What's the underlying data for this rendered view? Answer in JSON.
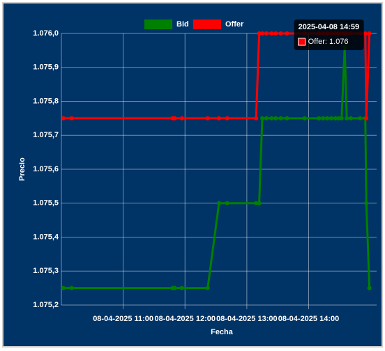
{
  "chart_data": {
    "type": "line",
    "x_label": "Fecha",
    "y_label": "Precio",
    "x": [
      "2025-04-08 10:02",
      "2025-04-08 10:10",
      "2025-04-08 11:48",
      "2025-04-08 11:50",
      "2025-04-08 11:57",
      "2025-04-08 12:22",
      "2025-04-08 12:33",
      "2025-04-08 12:41",
      "2025-04-08 13:09",
      "2025-04-08 13:12",
      "2025-04-08 13:15",
      "2025-04-08 13:19",
      "2025-04-08 13:24",
      "2025-04-08 13:28",
      "2025-04-08 13:33",
      "2025-04-08 13:39",
      "2025-04-08 13:56",
      "2025-04-08 14:10",
      "2025-04-08 14:14",
      "2025-04-08 14:18",
      "2025-04-08 14:22",
      "2025-04-08 14:26",
      "2025-04-08 14:29",
      "2025-04-08 14:32",
      "2025-04-08 14:35",
      "2025-04-08 14:37",
      "2025-04-08 14:41",
      "2025-04-08 14:50",
      "2025-04-08 14:55",
      "2025-04-08 14:56",
      "2025-04-08 14:59"
    ],
    "series": [
      {
        "name": "Bid",
        "color": "#008000",
        "values": [
          1.07525,
          1.07525,
          1.07525,
          1.07525,
          1.07525,
          1.07525,
          1.0755,
          1.0755,
          1.0755,
          1.0755,
          1.07575,
          1.07575,
          1.07575,
          1.07575,
          1.07575,
          1.07575,
          1.07575,
          1.07575,
          1.07575,
          1.07575,
          1.07575,
          1.07575,
          1.07575,
          1.07575,
          1.07596,
          1.07575,
          1.07575,
          1.07575,
          1.07575,
          1.0755,
          1.07525
        ]
      },
      {
        "name": "Offer",
        "color": "#ff0000",
        "values": [
          1.07575,
          1.07575,
          1.07575,
          1.07575,
          1.07575,
          1.07575,
          1.07575,
          1.07575,
          1.07575,
          1.076,
          1.076,
          1.076,
          1.076,
          1.076,
          1.076,
          1.076,
          1.076,
          1.076,
          1.076,
          1.076,
          1.076,
          1.076,
          1.076,
          1.076,
          1.076,
          1.076,
          1.076,
          1.076,
          1.076,
          1.07575,
          1.076
        ]
      }
    ],
    "xlim": [
      "2025-04-08 10:00",
      "2025-04-08 15:06"
    ],
    "xticks": [
      {
        "value": "2025-04-08 11:00",
        "label": "08-04-2025 11:00"
      },
      {
        "value": "2025-04-08 12:00",
        "label": "08-04-2025 12:00"
      },
      {
        "value": "2025-04-08 13:00",
        "label": "08-04-2025 13:00"
      },
      {
        "value": "2025-04-08 14:00",
        "label": "08-04-2025 14:00"
      }
    ],
    "ylim": [
      1.0752,
      1.076
    ],
    "yticks": [
      {
        "value": 1.0752,
        "label": "1.075,2"
      },
      {
        "value": 1.0753,
        "label": "1.075,3"
      },
      {
        "value": 1.0754,
        "label": "1.075,4"
      },
      {
        "value": 1.0755,
        "label": "1.075,5"
      },
      {
        "value": 1.0756,
        "label": "1.075,6"
      },
      {
        "value": 1.0757,
        "label": "1.075,7"
      },
      {
        "value": 1.0758,
        "label": "1.075,8"
      },
      {
        "value": 1.0759,
        "label": "1.075,9"
      },
      {
        "value": 1.076,
        "label": "1.076,0"
      }
    ],
    "grid": true,
    "legend": "top",
    "tooltip": {
      "title": "2025-04-08 14:59",
      "label": "Offer: 1.076",
      "series": 1,
      "index": 30
    }
  }
}
